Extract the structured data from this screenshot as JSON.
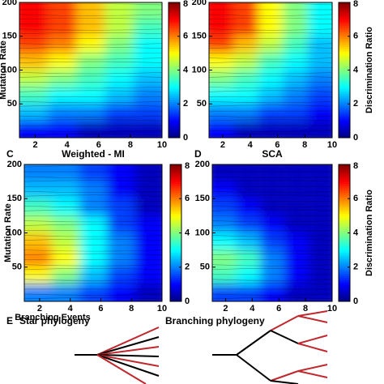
{
  "chart_data": [
    {
      "type": "heatmap",
      "ylabel": "Mutation Rate",
      "x": [
        1.9,
        3.7,
        5.5,
        7.3,
        9.1
      ],
      "y": [
        187.5,
        162.5,
        137.5,
        112.5,
        87.5,
        62.5,
        37.5,
        12.5
      ],
      "z": [
        [
          7,
          6.5,
          5.5,
          4.5,
          4
        ],
        [
          7,
          6.5,
          5.5,
          4.5,
          3.5
        ],
        [
          6.5,
          6,
          5,
          4,
          3
        ],
        [
          5.5,
          5,
          4,
          3.5,
          3
        ],
        [
          4.5,
          4,
          3.5,
          3,
          2.5
        ],
        [
          3.5,
          3,
          3,
          2.5,
          2
        ],
        [
          2.5,
          2,
          2,
          1.5,
          1.5
        ],
        [
          1,
          1,
          0.5,
          0.5,
          0.5
        ]
      ],
      "xlim": [
        1,
        10
      ],
      "xticks": [
        2,
        4,
        6,
        8,
        10
      ],
      "ylim": [
        0,
        200
      ],
      "yticks": [
        50,
        100,
        150,
        200
      ],
      "zlim": [
        0,
        8
      ],
      "zticks": [
        0,
        2,
        4,
        6,
        8
      ],
      "colormap": "jet"
    },
    {
      "type": "heatmap",
      "colorbar_label": "Discrimination Ratio",
      "x": [
        1.9,
        3.7,
        5.5,
        7.3,
        9.1
      ],
      "y": [
        187.5,
        162.5,
        137.5,
        112.5,
        87.5,
        62.5,
        37.5,
        12.5
      ],
      "z": [
        [
          7,
          6.5,
          5,
          4,
          3
        ],
        [
          7,
          6.5,
          5,
          4,
          3
        ],
        [
          6.5,
          5.5,
          4.5,
          3.5,
          2.5
        ],
        [
          5,
          4.5,
          3.5,
          3,
          2.5
        ],
        [
          4,
          3.5,
          3,
          2.5,
          2
        ],
        [
          3,
          3,
          2.5,
          2,
          1.5
        ],
        [
          2,
          2,
          1.5,
          1.5,
          1
        ],
        [
          1,
          0.5,
          0.5,
          0.5,
          0.5
        ]
      ],
      "xlim": [
        1,
        10
      ],
      "xticks": [
        2,
        4,
        6,
        8,
        10
      ],
      "ylim": [
        0,
        200
      ],
      "yticks": [
        50,
        100,
        150,
        200
      ],
      "zlim": [
        0,
        8
      ],
      "zticks": [
        0,
        2,
        4,
        6,
        8
      ],
      "colormap": "jet"
    },
    {
      "type": "heatmap",
      "panel_label": "C",
      "title": "Weighted - MI",
      "ylabel": "Mutation Rate",
      "xlabel": "Branching Events",
      "x": [
        1.9,
        3.7,
        5.5,
        7.3,
        9.1
      ],
      "y": [
        187.5,
        162.5,
        137.5,
        112.5,
        87.5,
        62.5,
        37.5,
        12.5
      ],
      "z": [
        [
          2,
          2,
          1.5,
          1,
          0.5
        ],
        [
          2.5,
          2.5,
          2,
          1,
          0.5
        ],
        [
          3.5,
          3,
          2,
          1.5,
          0.5
        ],
        [
          4.5,
          4,
          3,
          1.5,
          1
        ],
        [
          5.5,
          4.5,
          3,
          2,
          1
        ],
        [
          6,
          5,
          3,
          2,
          1
        ],
        [
          5,
          4,
          2.5,
          1.5,
          1
        ],
        [
          2,
          2,
          1.5,
          1,
          0.5
        ]
      ],
      "xlim": [
        1,
        10
      ],
      "xticks": [
        2,
        4,
        6,
        8,
        10
      ],
      "ylim": [
        0,
        200
      ],
      "yticks": [
        50,
        100,
        150,
        200
      ],
      "zlim": [
        0,
        8
      ],
      "zticks": [
        0,
        2,
        4,
        6,
        8
      ],
      "colormap": "jet"
    },
    {
      "type": "heatmap",
      "panel_label": "D",
      "title": "SCA",
      "colorbar_label": "Discrimination Ratio",
      "x": [
        1.9,
        3.7,
        5.5,
        7.3,
        9.1
      ],
      "y": [
        187.5,
        162.5,
        137.5,
        112.5,
        87.5,
        62.5,
        37.5,
        12.5
      ],
      "z": [
        [
          0.5,
          0.5,
          0.5,
          0.5,
          0.5
        ],
        [
          1,
          0.5,
          0.5,
          0.5,
          0.5
        ],
        [
          1.5,
          1,
          0.5,
          0.5,
          0.5
        ],
        [
          2,
          1.5,
          1,
          0.5,
          0.5
        ],
        [
          3,
          2.5,
          1.5,
          1,
          0.5
        ],
        [
          4,
          3.5,
          2,
          1,
          0.5
        ],
        [
          3.5,
          3,
          2,
          1,
          0.5
        ],
        [
          1.5,
          1.5,
          1,
          0.5,
          0.5
        ]
      ],
      "xlim": [
        1,
        10
      ],
      "xticks": [
        2,
        4,
        6,
        8,
        10
      ],
      "ylim": [
        0,
        200
      ],
      "yticks": [
        50,
        100,
        150,
        200
      ],
      "zlim": [
        0,
        8
      ],
      "zticks": [
        0,
        2,
        4,
        6,
        8
      ],
      "colormap": "jet"
    }
  ],
  "diagram": {
    "panel_label": "E",
    "star_title": "Star phylogeny",
    "branching_title": "Branching phylogeny"
  }
}
